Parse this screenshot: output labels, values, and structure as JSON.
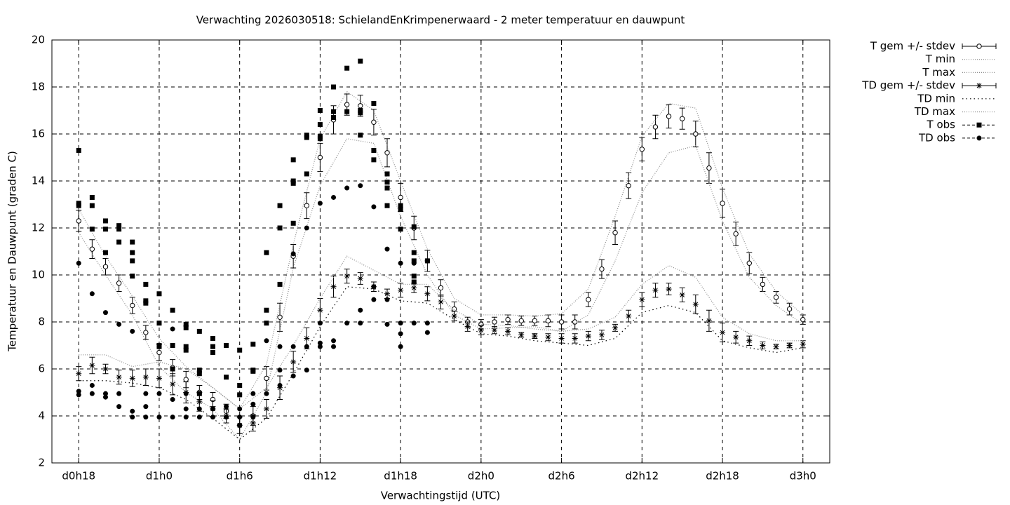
{
  "chart_data": {
    "type": "errorbar",
    "title": "Verwachting 2026030518: SchielandEnKrimpenerwaard - 2 meter temperatuur en dauwpunt",
    "x_label": "Verwachtingstijd (UTC)",
    "y_label": "Temperatuur en Dauwpunt (graden C)",
    "xlim": [
      16,
      74
    ],
    "ylim": [
      2,
      20
    ],
    "xticks": [
      {
        "value": 18,
        "label": "d0h18"
      },
      {
        "value": 24,
        "label": "d1h0"
      },
      {
        "value": 30,
        "label": "d1h6"
      },
      {
        "value": 36,
        "label": "d1h12"
      },
      {
        "value": 42,
        "label": "d1h18"
      },
      {
        "value": 48,
        "label": "d2h0"
      },
      {
        "value": 54,
        "label": "d2h6"
      },
      {
        "value": 60,
        "label": "d2h12"
      },
      {
        "value": 66,
        "label": "d2h18"
      },
      {
        "value": 72,
        "label": "d3h0"
      }
    ],
    "yticks": [
      2,
      4,
      6,
      8,
      10,
      12,
      14,
      16,
      18,
      20
    ],
    "grid": true,
    "legend": "right",
    "series": [
      {
        "name": "T gem +/- stdev",
        "style": "errorbar",
        "marker": "circle",
        "color": "#000000",
        "x": [
          18,
          19,
          20,
          21,
          22,
          23,
          24,
          25,
          26,
          27,
          28,
          29,
          30,
          31,
          32,
          33,
          34,
          35,
          36,
          37,
          38,
          39,
          40,
          41,
          42,
          43,
          44,
          45,
          46,
          47,
          48,
          49,
          50,
          51,
          52,
          53,
          54,
          55,
          56,
          57,
          58,
          59,
          60,
          61,
          62,
          63,
          64,
          65,
          66,
          67,
          68,
          69,
          70,
          71,
          72
        ],
        "values": [
          12.3,
          11.1,
          10.35,
          9.65,
          8.7,
          7.55,
          6.7,
          6.05,
          5.55,
          5.0,
          4.7,
          4.2,
          3.6,
          4.0,
          5.6,
          8.2,
          10.8,
          12.95,
          15.0,
          16.6,
          17.25,
          17.2,
          16.5,
          15.2,
          13.3,
          12.0,
          10.6,
          9.45,
          8.55,
          8.0,
          7.9,
          8.0,
          8.1,
          8.05,
          8.05,
          8.05,
          8.0,
          8.0,
          8.95,
          10.25,
          11.8,
          13.8,
          15.35,
          16.3,
          16.75,
          16.65,
          16.0,
          14.55,
          13.05,
          11.75,
          10.5,
          9.6,
          9.05,
          8.55,
          8.1
        ],
        "errors": [
          0.45,
          0.4,
          0.35,
          0.35,
          0.35,
          0.3,
          0.35,
          0.35,
          0.35,
          0.3,
          0.3,
          0.3,
          0.35,
          0.4,
          0.5,
          0.6,
          0.5,
          0.55,
          0.6,
          0.6,
          0.45,
          0.45,
          0.55,
          0.6,
          0.6,
          0.5,
          0.45,
          0.35,
          0.3,
          0.2,
          0.2,
          0.2,
          0.2,
          0.2,
          0.2,
          0.25,
          0.3,
          0.3,
          0.3,
          0.4,
          0.5,
          0.55,
          0.5,
          0.5,
          0.5,
          0.45,
          0.55,
          0.65,
          0.6,
          0.5,
          0.45,
          0.3,
          0.25,
          0.25,
          0.2
        ]
      },
      {
        "name": "T min",
        "style": "line",
        "dash": "1,2",
        "color": "#8c8c8c",
        "x": [
          18,
          20,
          22,
          24,
          26,
          28,
          30,
          32,
          34,
          36,
          38,
          40,
          42,
          44,
          46,
          48,
          50,
          52,
          54,
          56,
          58,
          60,
          62,
          64,
          66,
          68,
          70,
          72
        ],
        "values": [
          11.8,
          10.0,
          8.3,
          6.1,
          5.0,
          4.3,
          3.0,
          5.0,
          10.3,
          13.8,
          15.8,
          15.6,
          12.5,
          10.0,
          8.3,
          7.7,
          7.75,
          7.8,
          7.6,
          8.3,
          10.6,
          13.5,
          15.2,
          15.5,
          12.3,
          9.9,
          8.7,
          7.9
        ]
      },
      {
        "name": "T max",
        "style": "line",
        "dash": "1,2",
        "color": "#8c8c8c",
        "x": [
          18,
          20,
          22,
          24,
          26,
          28,
          30,
          32,
          34,
          36,
          38,
          40,
          42,
          44,
          46,
          48,
          50,
          52,
          54,
          56,
          58,
          60,
          62,
          64,
          66,
          68,
          70,
          72
        ],
        "values": [
          12.8,
          10.8,
          9.1,
          7.3,
          6.1,
          5.2,
          4.3,
          6.2,
          11.3,
          15.8,
          17.8,
          17.0,
          14.0,
          11.1,
          9.0,
          8.3,
          8.3,
          8.25,
          8.35,
          9.4,
          12.5,
          15.9,
          17.3,
          17.1,
          13.7,
          10.9,
          9.3,
          8.3
        ]
      },
      {
        "name": "TD gem +/- stdev",
        "style": "errorbar",
        "marker": "star",
        "color": "#000000",
        "x": [
          18,
          19,
          20,
          21,
          22,
          23,
          24,
          25,
          26,
          27,
          28,
          29,
          30,
          31,
          32,
          33,
          34,
          35,
          36,
          37,
          38,
          39,
          40,
          41,
          42,
          43,
          44,
          45,
          46,
          47,
          48,
          49,
          50,
          51,
          52,
          53,
          54,
          55,
          56,
          57,
          58,
          59,
          60,
          61,
          62,
          63,
          64,
          65,
          66,
          67,
          68,
          69,
          70,
          71,
          72
        ],
        "values": [
          5.8,
          6.15,
          6.0,
          5.65,
          5.6,
          5.65,
          5.6,
          5.35,
          5.0,
          4.6,
          4.3,
          4.0,
          3.6,
          3.7,
          4.3,
          5.2,
          6.3,
          7.3,
          8.5,
          9.5,
          9.95,
          9.85,
          9.5,
          9.2,
          9.35,
          9.45,
          9.2,
          8.85,
          8.25,
          7.8,
          7.65,
          7.65,
          7.6,
          7.45,
          7.4,
          7.35,
          7.3,
          7.3,
          7.4,
          7.45,
          7.75,
          8.25,
          8.95,
          9.35,
          9.4,
          9.15,
          8.75,
          8.05,
          7.55,
          7.35,
          7.2,
          7.0,
          6.95,
          7.0,
          7.05
        ],
        "errors": [
          0.3,
          0.35,
          0.2,
          0.3,
          0.35,
          0.35,
          0.4,
          0.45,
          0.45,
          0.4,
          0.35,
          0.3,
          0.35,
          0.35,
          0.4,
          0.5,
          0.45,
          0.45,
          0.5,
          0.45,
          0.3,
          0.25,
          0.2,
          0.2,
          0.3,
          0.2,
          0.3,
          0.3,
          0.2,
          0.2,
          0.2,
          0.15,
          0.15,
          0.1,
          0.1,
          0.15,
          0.2,
          0.2,
          0.2,
          0.2,
          0.15,
          0.25,
          0.3,
          0.3,
          0.25,
          0.3,
          0.4,
          0.45,
          0.4,
          0.25,
          0.2,
          0.15,
          0.1,
          0.1,
          0.15
        ]
      },
      {
        "name": "TD min",
        "style": "line",
        "dash": "1.5,4",
        "color": "#000000",
        "x": [
          18,
          20,
          22,
          24,
          26,
          28,
          30,
          32,
          34,
          36,
          38,
          40,
          42,
          44,
          46,
          48,
          50,
          52,
          54,
          56,
          58,
          60,
          62,
          64,
          66,
          68,
          70,
          72
        ],
        "values": [
          5.5,
          5.5,
          5.4,
          5.2,
          4.7,
          3.9,
          3.0,
          3.9,
          5.8,
          7.8,
          9.5,
          9.4,
          8.9,
          8.8,
          8.1,
          7.5,
          7.4,
          7.2,
          7.1,
          7.0,
          7.3,
          8.4,
          8.7,
          8.4,
          7.2,
          6.9,
          6.7,
          6.9
        ]
      },
      {
        "name": "TD max",
        "style": "line",
        "dash": "1,2",
        "color": "#8c8c8c",
        "x": [
          18,
          20,
          22,
          24,
          26,
          28,
          30,
          32,
          34,
          36,
          38,
          40,
          42,
          44,
          46,
          48,
          50,
          52,
          54,
          56,
          58,
          60,
          62,
          64,
          66,
          68,
          70,
          72
        ],
        "values": [
          6.6,
          6.6,
          6.1,
          6.3,
          6.0,
          5.2,
          4.3,
          5.2,
          7.0,
          9.0,
          10.8,
          10.2,
          9.6,
          9.6,
          8.5,
          7.9,
          7.85,
          7.7,
          7.6,
          7.7,
          8.2,
          9.6,
          10.4,
          9.9,
          8.2,
          7.5,
          7.2,
          7.2
        ]
      },
      {
        "name": "T obs",
        "style": "points",
        "marker": "square",
        "color": "#000000",
        "x": [
          18,
          18,
          18,
          19,
          19,
          19,
          20,
          20,
          20,
          21,
          21,
          21,
          22,
          22,
          22,
          22,
          23,
          23,
          23,
          24,
          24,
          24,
          24,
          25,
          25,
          25,
          26,
          26,
          26,
          26,
          27,
          27,
          27,
          27,
          28,
          28,
          28,
          29,
          29,
          30,
          30,
          30,
          31,
          31,
          31,
          32,
          32,
          32,
          33,
          33,
          33,
          34,
          34,
          34,
          34,
          35,
          35,
          35,
          36,
          36,
          36,
          36,
          37,
          37,
          37,
          38,
          38,
          39,
          39,
          39,
          39,
          40,
          40,
          40,
          41,
          41,
          41,
          41,
          42,
          42,
          42,
          43,
          43,
          43,
          43,
          43,
          44
        ],
        "values": [
          15.3,
          13.05,
          12.95,
          13.3,
          12.95,
          11.95,
          12.3,
          11.95,
          10.95,
          12.1,
          11.95,
          11.4,
          11.4,
          10.95,
          10.6,
          9.95,
          9.6,
          8.9,
          8.8,
          9.2,
          7.95,
          7.0,
          6.95,
          8.5,
          7.0,
          6.0,
          7.9,
          7.75,
          6.95,
          6.8,
          7.6,
          5.95,
          5.8,
          4.95,
          7.3,
          6.95,
          6.7,
          7.0,
          5.65,
          6.8,
          5.3,
          4.9,
          7.05,
          5.95,
          5.9,
          10.95,
          8.5,
          7.95,
          12.95,
          12.0,
          9.6,
          14.9,
          14.0,
          13.9,
          12.2,
          15.95,
          15.85,
          14.3,
          17.0,
          16.4,
          15.9,
          15.8,
          18.0,
          16.95,
          16.7,
          18.8,
          16.95,
          19.1,
          17.0,
          16.9,
          15.95,
          17.3,
          15.3,
          14.9,
          14.3,
          13.95,
          13.7,
          12.95,
          12.95,
          12.8,
          11.95,
          12.05,
          10.95,
          10.6,
          9.95,
          9.7,
          10.6
        ]
      },
      {
        "name": "TD obs",
        "style": "points",
        "marker": "dot",
        "color": "#000000",
        "x": [
          18,
          18,
          18,
          19,
          19,
          19,
          20,
          20,
          20,
          21,
          21,
          21,
          22,
          22,
          22,
          23,
          23,
          23,
          24,
          24,
          24,
          25,
          25,
          25,
          26,
          26,
          26,
          26,
          27,
          27,
          27,
          28,
          28,
          29,
          29,
          30,
          30,
          30,
          30,
          31,
          31,
          31,
          32,
          32,
          33,
          33,
          33,
          34,
          34,
          34,
          35,
          35,
          35,
          36,
          36,
          36,
          36,
          37,
          37,
          37,
          38,
          38,
          39,
          39,
          39,
          40,
          40,
          40,
          41,
          41,
          41,
          42,
          42,
          42,
          42,
          43,
          43,
          44,
          44
        ],
        "values": [
          10.5,
          5.05,
          4.9,
          9.2,
          5.3,
          4.95,
          8.4,
          4.95,
          4.8,
          7.9,
          4.95,
          4.4,
          7.6,
          4.2,
          3.95,
          4.95,
          4.4,
          3.95,
          6.95,
          4.95,
          3.95,
          7.7,
          4.7,
          3.95,
          7.85,
          4.95,
          4.3,
          3.95,
          4.95,
          4.3,
          3.95,
          4.3,
          3.95,
          4.4,
          3.95,
          4.9,
          4.3,
          3.95,
          3.6,
          4.95,
          4.5,
          3.95,
          7.2,
          4.95,
          6.95,
          5.95,
          5.3,
          10.9,
          6.95,
          5.7,
          12.0,
          6.95,
          5.95,
          13.05,
          7.95,
          7.1,
          6.95,
          13.3,
          7.2,
          6.95,
          13.7,
          7.95,
          13.8,
          8.5,
          7.95,
          12.9,
          9.5,
          8.95,
          11.1,
          8.95,
          7.9,
          10.5,
          7.95,
          7.5,
          6.95,
          10.5,
          7.95,
          7.95,
          7.55
        ]
      }
    ]
  }
}
